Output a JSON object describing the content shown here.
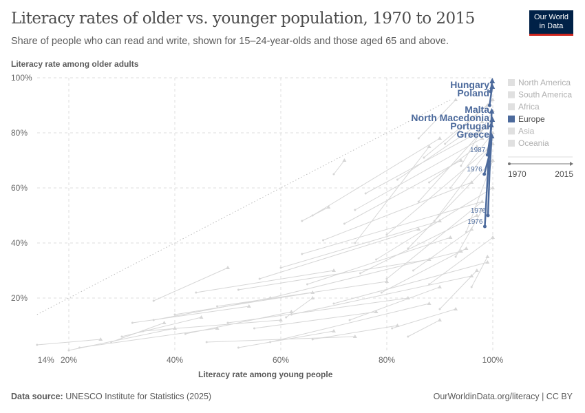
{
  "title": "Literacy rates of older vs. younger population, 1970 to 2015",
  "subtitle": "Share of people who can read and write, shown for 15–24-year-olds and those aged 65 and above.",
  "logo": {
    "line1": "Our World",
    "line2": "in Data"
  },
  "footer": {
    "source_label": "Data source:",
    "source": "UNESCO Institute for Statistics (2025)",
    "right": "OurWorldinData.org/literacy | CC BY"
  },
  "chart_data": {
    "type": "line",
    "subtype": "connected-scatter",
    "title": "Literacy rates of older vs. younger population, 1970 to 2015",
    "xlabel": "Literacy rate among young people",
    "ylabel": "Literacy rate among older adults",
    "xlim": [
      14,
      100
    ],
    "ylim": [
      1,
      100
    ],
    "xticks": [
      {
        "v": 14,
        "label": "14%"
      },
      {
        "v": 20,
        "label": "20%"
      },
      {
        "v": 40,
        "label": "40%"
      },
      {
        "v": 60,
        "label": "60%"
      },
      {
        "v": 80,
        "label": "80%"
      },
      {
        "v": 100,
        "label": "100%"
      }
    ],
    "yticks": [
      {
        "v": 20,
        "label": "20%"
      },
      {
        "v": 40,
        "label": "40%"
      },
      {
        "v": 60,
        "label": "60%"
      },
      {
        "v": 80,
        "label": "80%"
      },
      {
        "v": 100,
        "label": "100%"
      }
    ],
    "grid": true,
    "reference_line": "y = x (dotted)",
    "legend": {
      "placement": "right",
      "items": [
        {
          "label": "North America",
          "color": "#e0e0e0",
          "active": false
        },
        {
          "label": "South America",
          "color": "#e0e0e0",
          "active": false
        },
        {
          "label": "Africa",
          "color": "#e0e0e0",
          "active": false
        },
        {
          "label": "Europe",
          "color": "#4c6a9c",
          "active": true
        },
        {
          "label": "Asia",
          "color": "#e0e0e0",
          "active": false
        },
        {
          "label": "Oceania",
          "color": "#e0e0e0",
          "active": false
        }
      ]
    },
    "timeline": {
      "start": "1970",
      "end": "2015"
    },
    "highlight_color": "#4c6a9c",
    "muted_color": "#d6d6d6",
    "series": [
      {
        "name": "Hungary",
        "start_year": "",
        "points": [
          [
            99.6,
            95
          ],
          [
            99.9,
            99
          ]
        ]
      },
      {
        "name": "Poland",
        "start_year": "",
        "points": [
          [
            99.4,
            90
          ],
          [
            99.9,
            97
          ]
        ]
      },
      {
        "name": "Malta",
        "start_year": "1976",
        "points": [
          [
            98.4,
            65
          ],
          [
            99.5,
            73
          ],
          [
            99.8,
            88
          ]
        ]
      },
      {
        "name": "North Macedonia",
        "start_year": "1987",
        "points": [
          [
            99.0,
            72
          ],
          [
            99.6,
            80
          ],
          [
            99.9,
            85
          ]
        ]
      },
      {
        "name": "Portugal",
        "start_year": "1976",
        "points": [
          [
            98.5,
            46
          ],
          [
            99.2,
            70
          ],
          [
            99.7,
            83
          ]
        ]
      },
      {
        "name": "Greece",
        "start_year": "1976",
        "points": [
          [
            99.1,
            50
          ],
          [
            99.4,
            66
          ],
          [
            99.8,
            79
          ]
        ]
      }
    ],
    "other_countries": [
      [
        14,
        3,
        26,
        5
      ],
      [
        22,
        2,
        48,
        9
      ],
      [
        30,
        6,
        45,
        13
      ],
      [
        32,
        11,
        54,
        17
      ],
      [
        36,
        19,
        50,
        31
      ],
      [
        34,
        8,
        60,
        12
      ],
      [
        40,
        14,
        66,
        22
      ],
      [
        44,
        22,
        70,
        30
      ],
      [
        46,
        4,
        74,
        6
      ],
      [
        48,
        17,
        80,
        26
      ],
      [
        50,
        11,
        84,
        20
      ],
      [
        52,
        23,
        88,
        34
      ],
      [
        55,
        9,
        78,
        15
      ],
      [
        56,
        27,
        86,
        45
      ],
      [
        58,
        20,
        94,
        37
      ],
      [
        60,
        31,
        90,
        48
      ],
      [
        62,
        14,
        96,
        28
      ],
      [
        64,
        36,
        98,
        55
      ],
      [
        65,
        25,
        92,
        42
      ],
      [
        66,
        5,
        82,
        10
      ],
      [
        68,
        41,
        96,
        62
      ],
      [
        70,
        18,
        99,
        33
      ],
      [
        72,
        47,
        94,
        70
      ],
      [
        73,
        12,
        90,
        24
      ],
      [
        74,
        52,
        98,
        78
      ],
      [
        75,
        29,
        97,
        50
      ],
      [
        76,
        58,
        99,
        82
      ],
      [
        78,
        34,
        100,
        60
      ],
      [
        79,
        22,
        95,
        38
      ],
      [
        80,
        43,
        99,
        74
      ],
      [
        81,
        9,
        93,
        16
      ],
      [
        82,
        63,
        98,
        84
      ],
      [
        84,
        38,
        99,
        68
      ],
      [
        85,
        30,
        96,
        45
      ],
      [
        86,
        55,
        100,
        85
      ],
      [
        87,
        71,
        99,
        90
      ],
      [
        88,
        25,
        100,
        42
      ],
      [
        89,
        48,
        100,
        76
      ],
      [
        90,
        16,
        97,
        30
      ],
      [
        91,
        76,
        100,
        92
      ],
      [
        92,
        60,
        100,
        80
      ],
      [
        93,
        35,
        98,
        52
      ],
      [
        94,
        68,
        100,
        88
      ],
      [
        95,
        44,
        100,
        70
      ],
      [
        96,
        24,
        99,
        35
      ],
      [
        84,
        6,
        90,
        12
      ],
      [
        70,
        65,
        72,
        70
      ],
      [
        64,
        48,
        69,
        53
      ],
      [
        61,
        13,
        66,
        20
      ],
      [
        52,
        2,
        70,
        8
      ],
      [
        20,
        1,
        40,
        9
      ],
      [
        28,
        4,
        38,
        11
      ],
      [
        42,
        7,
        62,
        15
      ],
      [
        36,
        12,
        58,
        20
      ],
      [
        86,
        78,
        93,
        92
      ],
      [
        74,
        40,
        88,
        75
      ],
      [
        80,
        27,
        98,
        55
      ],
      [
        66,
        50,
        90,
        78
      ],
      [
        58,
        4,
        88,
        18
      ],
      [
        88,
        62,
        97,
        75
      ]
    ]
  }
}
